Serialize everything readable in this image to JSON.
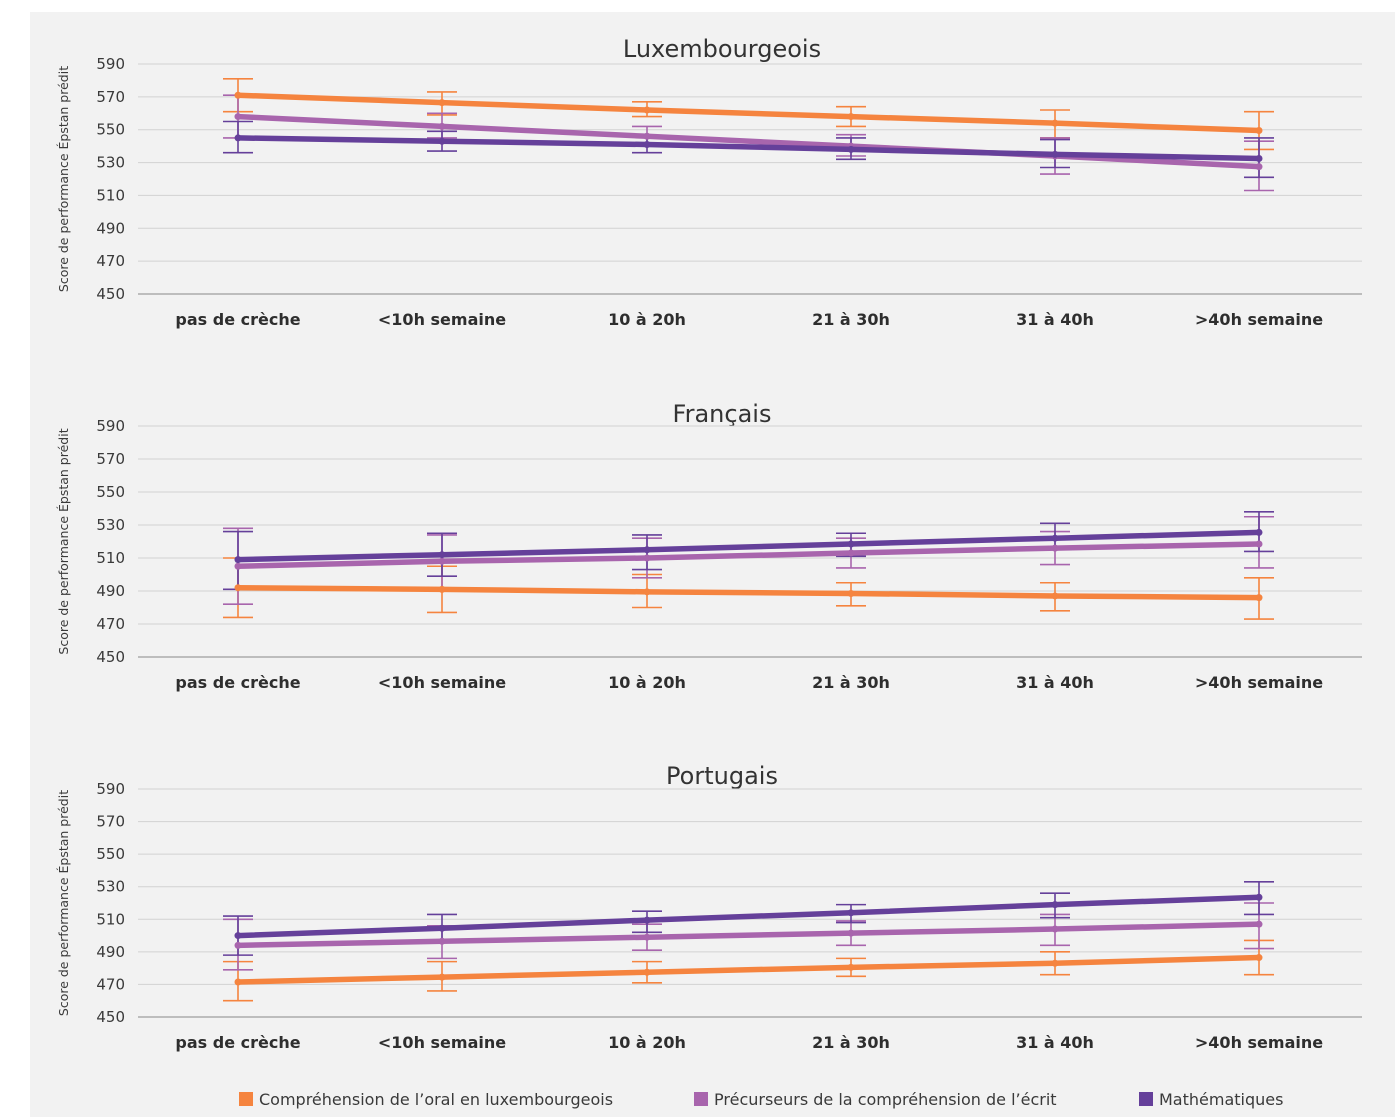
{
  "colors": {
    "series": [
      "#f5843f",
      "#a865ad",
      "#65409a"
    ],
    "grid": "#d2d2d2",
    "axis": "#bdbdbd",
    "background": "#f2f2f2"
  },
  "legend": {
    "position": "bottom-center",
    "items": [
      {
        "label": "Compréhension de l’oral en luxembourgeois",
        "color": "#f5843f"
      },
      {
        "label": "Précurseurs de la compréhension de l’écrit",
        "color": "#a865ad"
      },
      {
        "label": "Mathématiques",
        "color": "#65409a"
      }
    ]
  },
  "chart_data": [
    {
      "type": "line",
      "title": "Luxembourgeois",
      "ylabel": "Score de performance Épstan prédit",
      "xlabel": "",
      "ylim": [
        450,
        590
      ],
      "yticks": [
        450,
        470,
        490,
        510,
        530,
        550,
        570,
        590
      ],
      "grid": true,
      "categories": [
        "pas de crèche",
        "<10h semaine",
        "10 à 20h",
        "21 à 30h",
        "31 à 40h",
        ">40h semaine"
      ],
      "series": [
        {
          "name": "Compréhension de l’oral en luxembourgeois",
          "values": [
            571,
            566.5,
            562,
            558,
            554,
            549.5
          ],
          "err_low": [
            561,
            559,
            558,
            552,
            545,
            538
          ],
          "err_high": [
            581,
            573,
            567,
            564,
            562,
            561
          ]
        },
        {
          "name": "Précurseurs de la compréhension de l’écrit",
          "values": [
            558,
            552,
            546,
            540,
            534,
            527.5
          ],
          "err_low": [
            545,
            545,
            540,
            534,
            523,
            513
          ],
          "err_high": [
            571,
            560,
            552,
            547,
            545,
            543
          ]
        },
        {
          "name": "Mathématiques",
          "values": [
            545,
            543,
            541,
            538,
            535,
            532.5
          ],
          "err_low": [
            536,
            537,
            536,
            532,
            527,
            521
          ],
          "err_high": [
            555,
            549,
            546,
            545,
            544,
            545
          ]
        }
      ]
    },
    {
      "type": "line",
      "title": "Français",
      "ylabel": "Score de performance Épstan prédit",
      "xlabel": "",
      "ylim": [
        450,
        590
      ],
      "yticks": [
        450,
        470,
        490,
        510,
        530,
        550,
        570,
        590
      ],
      "grid": true,
      "categories": [
        "pas de crèche",
        "<10h semaine",
        "10 à 20h",
        "21 à 30h",
        "31 à 40h",
        ">40h semaine"
      ],
      "series": [
        {
          "name": "Compréhension de l’oral en luxembourgeois",
          "values": [
            492,
            491,
            489.5,
            488.5,
            487,
            486
          ],
          "err_low": [
            474,
            477,
            480,
            481,
            478,
            473
          ],
          "err_high": [
            510,
            505,
            500,
            495,
            495,
            498
          ]
        },
        {
          "name": "Précurseurs de la compréhension de l’écrit",
          "values": [
            505,
            508,
            510,
            513,
            516,
            518.5
          ],
          "err_low": [
            482,
            490,
            498,
            504,
            506,
            504
          ],
          "err_high": [
            528,
            524,
            522,
            522,
            526,
            535
          ]
        },
        {
          "name": "Mathématiques",
          "values": [
            509,
            512,
            515,
            518.5,
            522,
            525.5
          ],
          "err_low": [
            491,
            499,
            503,
            511,
            515,
            514
          ],
          "err_high": [
            526,
            525,
            524,
            525,
            531,
            538
          ]
        }
      ]
    },
    {
      "type": "line",
      "title": "Portugais",
      "ylabel": "Score de performance Épstan prédit",
      "xlabel": "",
      "ylim": [
        450,
        590
      ],
      "yticks": [
        450,
        470,
        490,
        510,
        530,
        550,
        570,
        590
      ],
      "grid": true,
      "categories": [
        "pas de crèche",
        "<10h semaine",
        "10 à 20h",
        "21 à 30h",
        "31 à 40h",
        ">40h semaine"
      ],
      "series": [
        {
          "name": "Compréhension de l’oral en luxembourgeois",
          "values": [
            471.5,
            474.5,
            477.5,
            480.5,
            483,
            486.5
          ],
          "err_low": [
            460,
            466,
            471,
            475,
            476,
            476
          ],
          "err_high": [
            484,
            484,
            484,
            486,
            490,
            497
          ]
        },
        {
          "name": "Précurseurs de la compréhension de l’écrit",
          "values": [
            494,
            496.5,
            499,
            501.5,
            504,
            507
          ],
          "err_low": [
            479,
            486,
            491,
            494,
            494,
            492
          ],
          "err_high": [
            510,
            506,
            507,
            509,
            513,
            520
          ]
        },
        {
          "name": "Mathématiques",
          "values": [
            500,
            504.5,
            509.5,
            514,
            519,
            523.5
          ],
          "err_low": [
            488,
            496,
            502,
            508,
            511,
            513
          ],
          "err_high": [
            512,
            513,
            515,
            519,
            526,
            533
          ]
        }
      ]
    }
  ]
}
